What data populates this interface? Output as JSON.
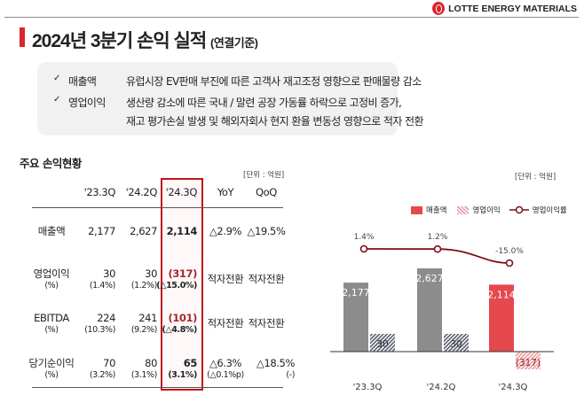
{
  "header": {
    "brand": "LOTTE ENERGY MATERIALS",
    "title": "2024년 3분기 손익 실적",
    "title_sub": "(연결기준)"
  },
  "summary": [
    {
      "label": "매출액",
      "lines": [
        "유럽시장 EV판매 부진에 따른 고객사 재고조정 영향으로 판매물량 감소"
      ]
    },
    {
      "label": "영업이익",
      "lines": [
        "생산량 감소에 따른 국내 / 말련 공장 가동률 하락으로 고정비 증가,",
        "재고 평가손실 발생 및 해외자회사 현지 환율 변동성 영향으로 적자 전환"
      ]
    }
  ],
  "table": {
    "title": "주요 손익현황",
    "unit": "[단위 : 억원]",
    "columns": [
      "'23.3Q",
      "'24.2Q",
      "'24.3Q",
      "YoY",
      "QoQ"
    ],
    "rows": [
      {
        "label": "매출액",
        "label_sub": "",
        "cells": [
          [
            "2,177",
            ""
          ],
          [
            "2,627",
            ""
          ],
          [
            "2,114",
            ""
          ],
          [
            "△2.9%",
            ""
          ],
          [
            "△19.5%",
            ""
          ]
        ]
      },
      {
        "label": "영업이익",
        "label_sub": "(%)",
        "cells": [
          [
            "30",
            "(1.4%)"
          ],
          [
            "30",
            "(1.2%)"
          ],
          [
            "(317)",
            "(△15.0%)"
          ],
          [
            "적자전환",
            ""
          ],
          [
            "적자전환",
            ""
          ]
        ]
      },
      {
        "label": "EBITDA",
        "label_sub": "(%)",
        "cells": [
          [
            "224",
            "(10.3%)"
          ],
          [
            "241",
            "(9.2%)"
          ],
          [
            "(101)",
            "(△4.8%)"
          ],
          [
            "적자전환",
            ""
          ],
          [
            "적자전환",
            ""
          ]
        ]
      },
      {
        "label": "당기순이익",
        "label_sub": "(%)",
        "cells": [
          [
            "70",
            "(3.2%)"
          ],
          [
            "80",
            "(3.1%)"
          ],
          [
            "65",
            "(3.1%)"
          ],
          [
            "△6.3%",
            "(△0.1%p)"
          ],
          [
            "△18.5%",
            "(-)"
          ]
        ]
      }
    ]
  },
  "chart_data": {
    "type": "bar",
    "unit": "[단위 : 억원]",
    "categories": [
      "'23.3Q",
      "'24.2Q",
      "'24.3Q"
    ],
    "legend": [
      "매출액",
      "영업이익",
      "영업이익률"
    ],
    "legend_position": "top-right",
    "series": [
      {
        "name": "매출액",
        "type": "bar",
        "values": [
          2177,
          2627,
          2114
        ],
        "labels": [
          "2,177",
          "2,627",
          "2,114"
        ]
      },
      {
        "name": "영업이익",
        "type": "bar-hatched",
        "values": [
          30,
          30,
          -317
        ],
        "labels": [
          "30",
          "30",
          "(317)"
        ]
      },
      {
        "name": "영업이익률",
        "type": "line",
        "values": [
          1.4,
          1.2,
          -15.0
        ],
        "labels": [
          "1.4%",
          "1.2%",
          "-15.0%"
        ]
      }
    ],
    "colors": {
      "past": "#8c8c8c",
      "current": "#e5484d",
      "line": "#7a0f16",
      "hatch_past": "#5a6070",
      "hatch_current": "#e89aa0"
    }
  }
}
